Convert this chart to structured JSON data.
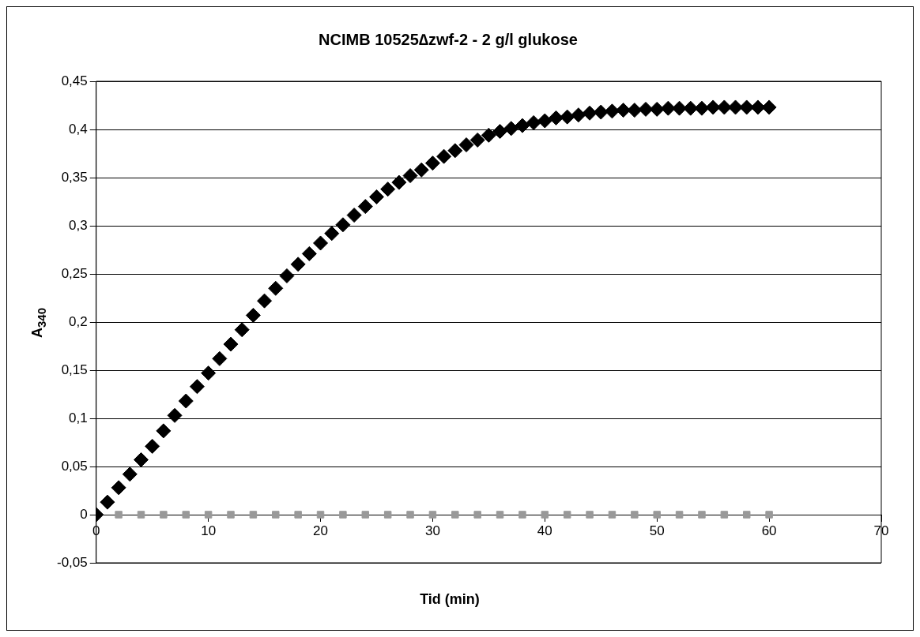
{
  "chart_data": {
    "type": "scatter",
    "title": "NCIMB 10525∆zwf-2 - 2 g/l glukose",
    "xlabel": "Tid (min)",
    "ylabel": "A$_{340}$",
    "xlim": [
      0,
      70
    ],
    "xticks": [
      0,
      10,
      20,
      30,
      40,
      50,
      60,
      70
    ],
    "ylim": [
      -0.05,
      0.45
    ],
    "yticks": [
      {
        "value": -0.05,
        "label": "-0,05"
      },
      {
        "value": 0,
        "label": "0"
      },
      {
        "value": 0.05,
        "label": "0,05"
      },
      {
        "value": 0.1,
        "label": "0,1"
      },
      {
        "value": 0.15,
        "label": "0,15"
      },
      {
        "value": 0.2,
        "label": "0,2"
      },
      {
        "value": 0.25,
        "label": "0,25"
      },
      {
        "value": 0.3,
        "label": "0,3"
      },
      {
        "value": 0.35,
        "label": "0,35"
      },
      {
        "value": 0.4,
        "label": "0,4"
      },
      {
        "value": 0.45,
        "label": "0,45"
      }
    ],
    "grid": "y",
    "legend": false,
    "series": [
      {
        "color": "#000000",
        "marker": "diamond",
        "x": [
          0,
          1,
          2,
          3,
          4,
          5,
          6,
          7,
          8,
          9,
          10,
          11,
          12,
          13,
          14,
          15,
          16,
          17,
          18,
          19,
          20,
          21,
          22,
          23,
          24,
          25,
          26,
          27,
          28,
          29,
          30,
          31,
          32,
          33,
          34,
          35,
          36,
          37,
          38,
          39,
          40,
          41,
          42,
          43,
          44,
          45,
          46,
          47,
          48,
          49,
          50,
          51,
          52,
          53,
          54,
          55,
          56,
          57,
          58,
          59,
          60
        ],
        "values": [
          0,
          0.013,
          0.028,
          0.042,
          0.057,
          0.071,
          0.087,
          0.103,
          0.118,
          0.133,
          0.147,
          0.162,
          0.177,
          0.192,
          0.207,
          0.222,
          0.235,
          0.248,
          0.26,
          0.271,
          0.282,
          0.292,
          0.301,
          0.311,
          0.32,
          0.33,
          0.338,
          0.345,
          0.352,
          0.358,
          0.365,
          0.372,
          0.378,
          0.384,
          0.389,
          0.394,
          0.398,
          0.401,
          0.404,
          0.407,
          0.409,
          0.412,
          0.413,
          0.415,
          0.417,
          0.418,
          0.419,
          0.42,
          0.42,
          0.421,
          0.421,
          0.422,
          0.422,
          0.422,
          0.422,
          0.423,
          0.423,
          0.423,
          0.423,
          0.423,
          0.423
        ]
      },
      {
        "color": "#999999",
        "marker": "square",
        "x": [
          0,
          2,
          4,
          6,
          8,
          10,
          12,
          14,
          16,
          18,
          20,
          22,
          24,
          26,
          28,
          30,
          32,
          34,
          36,
          38,
          40,
          42,
          44,
          46,
          48,
          50,
          52,
          54,
          56,
          58,
          60
        ],
        "values": [
          0,
          0,
          0,
          0,
          0,
          0,
          0,
          0,
          0,
          0,
          0,
          0,
          0,
          0,
          0,
          0,
          0,
          0,
          0,
          0,
          0,
          0,
          0,
          0,
          0,
          0,
          0,
          0,
          0,
          0,
          0
        ]
      }
    ]
  }
}
